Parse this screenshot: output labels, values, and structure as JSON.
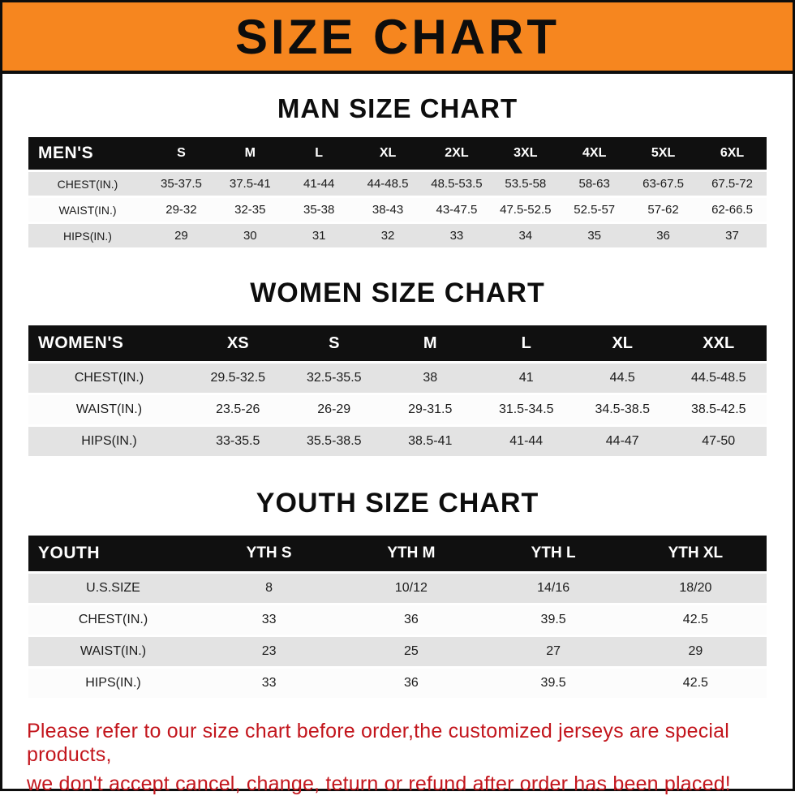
{
  "banner": {
    "title": "SIZE CHART"
  },
  "colors": {
    "banner_bg": "#F6861F",
    "banner_text": "#0d0d0d",
    "table_header_bg": "#101010",
    "table_header_text": "#ffffff",
    "row_shaded": "#E3E3E3",
    "row_plain": "#FCFCFC",
    "note_text": "#C3161D"
  },
  "chart_data": [
    {
      "type": "table",
      "title": "MAN SIZE CHART",
      "header": [
        "MEN'S",
        "S",
        "M",
        "L",
        "XL",
        "2XL",
        "3XL",
        "4XL",
        "5XL",
        "6XL"
      ],
      "rows": [
        [
          "CHEST(IN.)",
          "35-37.5",
          "37.5-41",
          "41-44",
          "44-48.5",
          "48.5-53.5",
          "53.5-58",
          "58-63",
          "63-67.5",
          "67.5-72"
        ],
        [
          "WAIST(IN.)",
          "29-32",
          "32-35",
          "35-38",
          "38-43",
          "43-47.5",
          "47.5-52.5",
          "52.5-57",
          "57-62",
          "62-66.5"
        ],
        [
          "HIPS(IN.)",
          "29",
          "30",
          "31",
          "32",
          "33",
          "34",
          "35",
          "36",
          "37"
        ]
      ]
    },
    {
      "type": "table",
      "title": "WOMEN SIZE CHART",
      "header": [
        "WOMEN'S",
        "XS",
        "S",
        "M",
        "L",
        "XL",
        "XXL"
      ],
      "rows": [
        [
          "CHEST(IN.)",
          "29.5-32.5",
          "32.5-35.5",
          "38",
          "41",
          "44.5",
          "44.5-48.5"
        ],
        [
          "WAIST(IN.)",
          "23.5-26",
          "26-29",
          "29-31.5",
          "31.5-34.5",
          "34.5-38.5",
          "38.5-42.5"
        ],
        [
          "HIPS(IN.)",
          "33-35.5",
          "35.5-38.5",
          "38.5-41",
          "41-44",
          "44-47",
          "47-50"
        ]
      ]
    },
    {
      "type": "table",
      "title": "YOUTH SIZE CHART",
      "header": [
        "YOUTH",
        "YTH S",
        "YTH M",
        "YTH L",
        "YTH XL"
      ],
      "rows": [
        [
          "U.S.SIZE",
          "8",
          "10/12",
          "14/16",
          "18/20"
        ],
        [
          "CHEST(IN.)",
          "33",
          "36",
          "39.5",
          "42.5"
        ],
        [
          "WAIST(IN.)",
          "23",
          "25",
          "27",
          "29"
        ],
        [
          "HIPS(IN.)",
          "33",
          "36",
          "39.5",
          "42.5"
        ]
      ]
    }
  ],
  "note": {
    "line1": "Please refer to our size chart before order,the customized jerseys are special products,",
    "line2": "we don't accept cancel, change, teturn or refund after order has been placed!"
  }
}
